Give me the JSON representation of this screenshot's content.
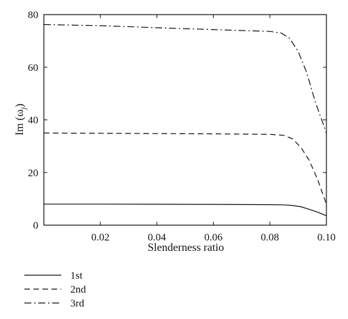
{
  "chart_data": {
    "type": "line",
    "xlabel": "Slenderness ratio",
    "ylabel_main": "Im (ω",
    "ylabel_sub": "j",
    "ylabel_close": ")",
    "xlim": [
      0.0,
      0.1
    ],
    "ylim": [
      0,
      80
    ],
    "xticks": [
      0.02,
      0.04,
      0.06,
      0.08,
      0.1
    ],
    "xtick_labels": [
      "0.02",
      "0.04",
      "0.06",
      "0.08",
      "0.10"
    ],
    "yticks": [
      0,
      20,
      40,
      60,
      80
    ],
    "ytick_labels": [
      "0",
      "20",
      "40",
      "60",
      "80"
    ],
    "grid": false,
    "legend_position": "below",
    "series": [
      {
        "name": "1st",
        "dash": "solid",
        "color": "#111111",
        "x": [
          0.0,
          0.02,
          0.04,
          0.06,
          0.08,
          0.085,
          0.088,
          0.091,
          0.094,
          0.097,
          0.1
        ],
        "y": [
          8.0,
          8.0,
          7.95,
          7.9,
          7.8,
          7.7,
          7.5,
          7.0,
          6.0,
          4.9,
          3.6
        ]
      },
      {
        "name": "2nd",
        "dash": "dashed",
        "color": "#111111",
        "x": [
          0.0,
          0.02,
          0.04,
          0.06,
          0.08,
          0.085,
          0.088,
          0.091,
          0.094,
          0.097,
          0.1
        ],
        "y": [
          35.0,
          34.9,
          34.8,
          34.7,
          34.5,
          34.1,
          32.8,
          29.5,
          24.5,
          17.0,
          8.0
        ]
      },
      {
        "name": "3rd",
        "dash": "dashdot",
        "color": "#111111",
        "x": [
          0.0,
          0.02,
          0.04,
          0.06,
          0.08,
          0.084,
          0.087,
          0.09,
          0.093,
          0.096,
          0.1
        ],
        "y": [
          76.2,
          75.8,
          75.0,
          74.3,
          73.6,
          73.0,
          71.0,
          66.0,
          58.0,
          47.0,
          35.0
        ]
      }
    ]
  }
}
